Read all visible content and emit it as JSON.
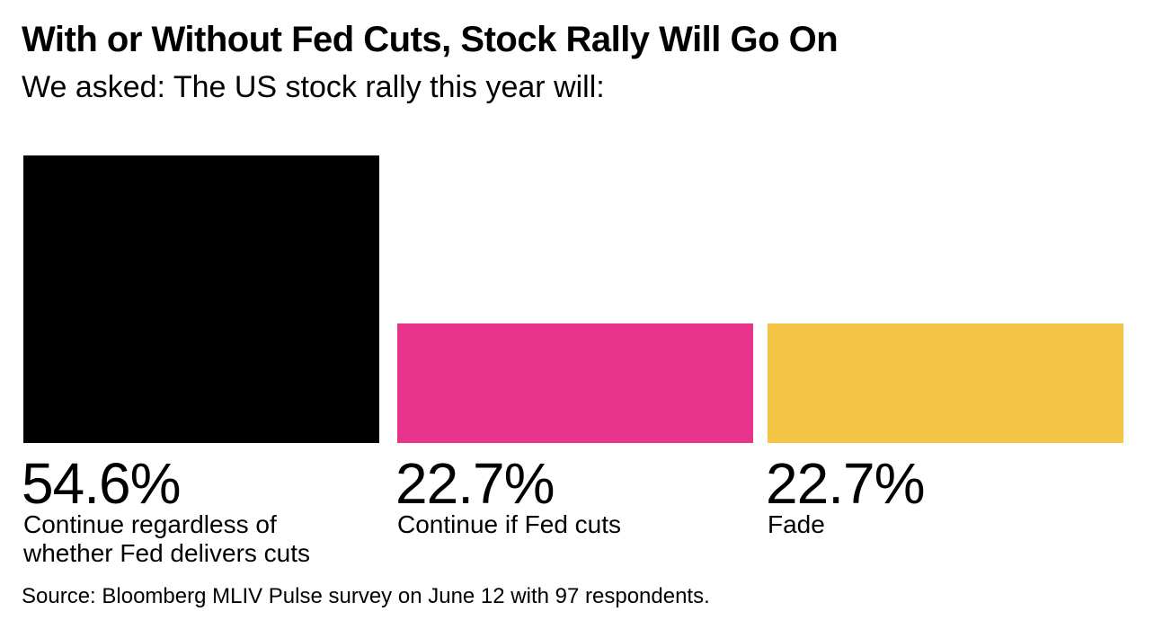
{
  "title": "With or Without Fed Cuts, Stock Rally Will Go On",
  "subtitle": "We asked: The US stock rally this year will:",
  "source": "Source: Bloomberg MLIV Pulse survey on June 12 with 97 respondents.",
  "colors": {
    "background": "#ffffff",
    "text": "#000000"
  },
  "chart_data": {
    "type": "bar",
    "title": "With or Without Fed Cuts, Stock Rally Will Go On",
    "subtitle": "We asked: The US stock rally this year will:",
    "categories": [
      "Continue regardless of whether Fed delivers cuts",
      "Continue if Fed cuts",
      "Fade"
    ],
    "values": [
      54.6,
      22.7,
      22.7
    ],
    "value_labels": [
      "54.6%",
      "22.7%",
      "22.7%"
    ],
    "unit": "%",
    "colors": [
      "#000000",
      "#e8348a",
      "#f5c545"
    ],
    "grid": false,
    "legend": "none"
  }
}
